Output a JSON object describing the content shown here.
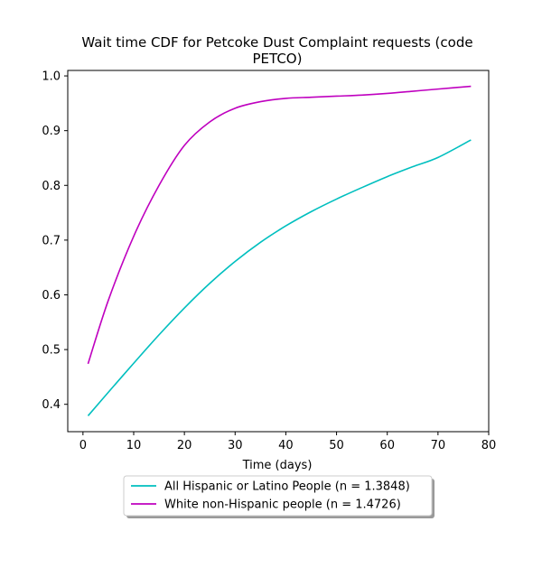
{
  "chart_data": {
    "type": "line",
    "title_lines": [
      "Wait time CDF for Petcoke Dust Complaint  requests (code",
      "PETCO)"
    ],
    "xlabel": "Time (days)",
    "ylabel": "",
    "xlim": [
      -3,
      80
    ],
    "ylim": [
      0.35,
      1.01
    ],
    "x_ticks": [
      0,
      10,
      20,
      30,
      40,
      50,
      60,
      70,
      80
    ],
    "y_ticks": [
      0.4,
      0.5,
      0.6,
      0.7,
      0.8,
      0.9,
      1.0
    ],
    "x_tick_labels": [
      "0",
      "10",
      "20",
      "30",
      "40",
      "50",
      "60",
      "70",
      "80"
    ],
    "y_tick_labels": [
      "0.4",
      "0.5",
      "0.6",
      "0.7",
      "0.8",
      "0.9",
      "1.0"
    ],
    "grid": false,
    "legend_position": "below plot",
    "series": [
      {
        "name": "All Hispanic or Latino People (n = 1.3848)",
        "color": "#00bfbf",
        "x": [
          1,
          5,
          10,
          15,
          20,
          25,
          30,
          35,
          40,
          45,
          50,
          55,
          60,
          65,
          70,
          76.5
        ],
        "y": [
          0.379,
          0.422,
          0.475,
          0.527,
          0.576,
          0.621,
          0.661,
          0.696,
          0.726,
          0.752,
          0.775,
          0.796,
          0.816,
          0.834,
          0.851,
          0.883
        ]
      },
      {
        "name": "White non-Hispanic people (n = 1.4726)",
        "color": "#bf00bf",
        "x": [
          1,
          5,
          10,
          15,
          20,
          25,
          30,
          35,
          40,
          45,
          50,
          55,
          60,
          65,
          70,
          76.5
        ],
        "y": [
          0.474,
          0.59,
          0.707,
          0.8,
          0.873,
          0.916,
          0.941,
          0.953,
          0.959,
          0.961,
          0.963,
          0.965,
          0.968,
          0.972,
          0.976,
          0.981
        ]
      }
    ]
  }
}
